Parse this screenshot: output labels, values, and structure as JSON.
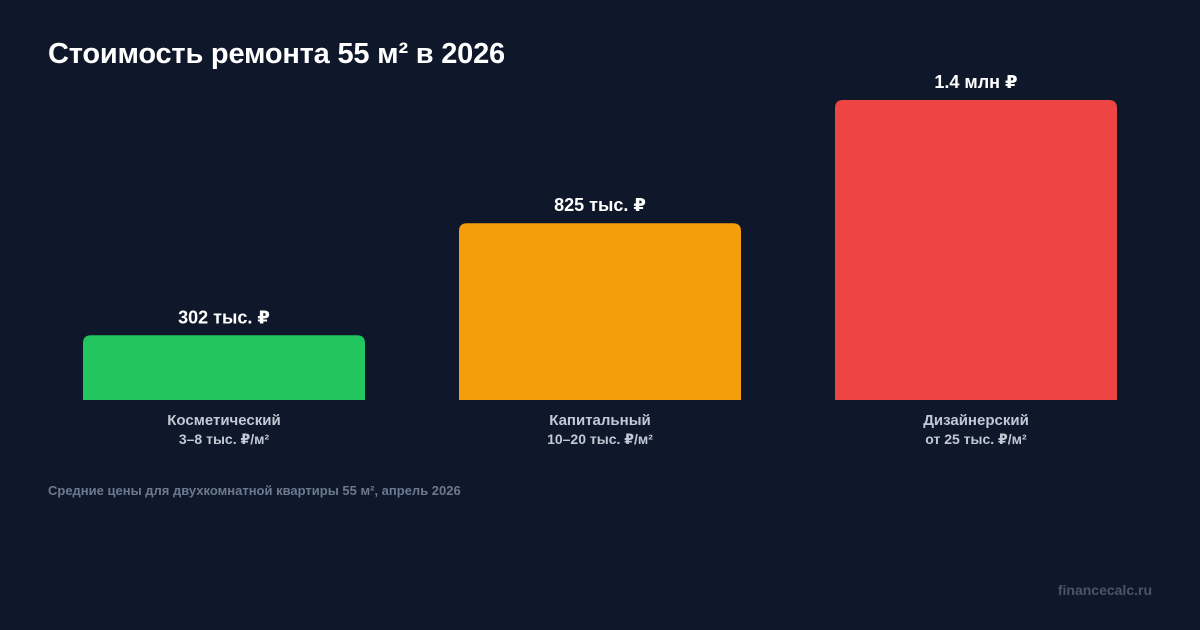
{
  "chart_data": {
    "type": "bar",
    "title": "Стоимость ремонта 55 м² в 2026",
    "categories": [
      "Косметический",
      "Капитальный",
      "Дизайнерский"
    ],
    "category_sublabels": [
      "3–8 тыс. ₽/м²",
      "10–20 тыс. ₽/м²",
      "от 25 тыс. ₽/м²"
    ],
    "values": [
      302,
      825,
      1400
    ],
    "value_labels": [
      "302 тыс. ₽",
      "825 тыс. ₽",
      "1.4 млн ₽"
    ],
    "unit": "тыс. ₽",
    "colors": [
      "#22c55e",
      "#f59e0b",
      "#ef4444"
    ],
    "ylim": [
      0,
      1400
    ],
    "grid": false,
    "xlabel": "",
    "ylabel": ""
  },
  "footnote": "Средние цены для двухкомнатной квартиры 55 м², апрель 2026",
  "source": "financecalc.ru",
  "colors": {
    "background": "#0f172a"
  }
}
